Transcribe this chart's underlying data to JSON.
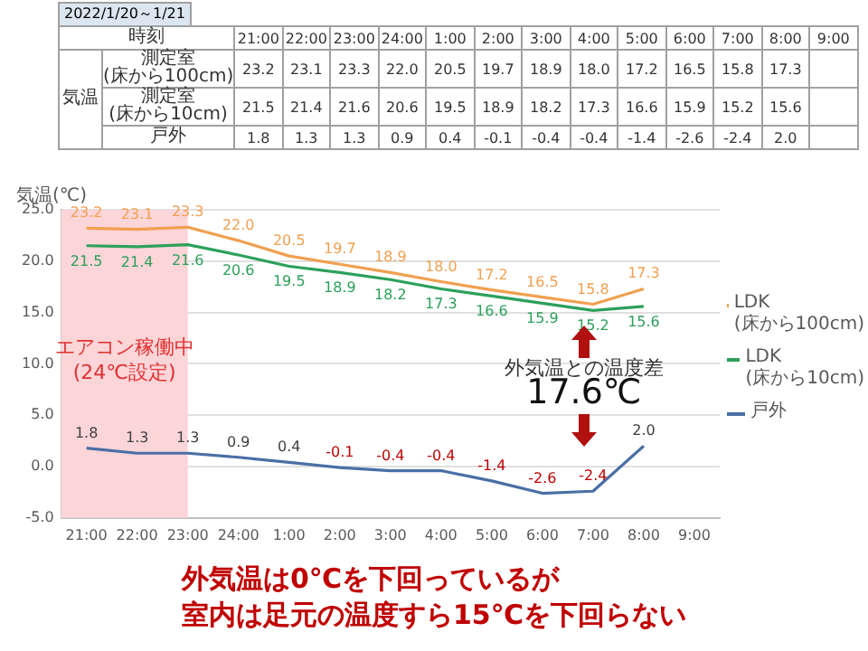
{
  "chart_data": {
    "type": "line",
    "ylabel": "気温(℃)",
    "categories": [
      "21:00",
      "22:00",
      "23:00",
      "24:00",
      "1:00",
      "2:00",
      "3:00",
      "4:00",
      "5:00",
      "6:00",
      "7:00",
      "8:00",
      "9:00"
    ],
    "series": [
      {
        "name": "LDK (床から100cm)",
        "color": "#f0a050",
        "values": [
          23.2,
          23.1,
          23.3,
          22.0,
          20.5,
          19.7,
          18.9,
          18.0,
          17.2,
          16.5,
          15.8,
          17.3,
          null
        ],
        "value_labels": [
          "23.2",
          "23.1",
          "23.3",
          "22.0",
          "20.5",
          "19.7",
          "18.9",
          "18.0",
          "17.2",
          "16.5",
          "15.8",
          "17.3",
          null
        ]
      },
      {
        "name": "LDK (床から10cm)",
        "color": "#2ca05a",
        "values": [
          21.5,
          21.4,
          21.6,
          20.6,
          19.5,
          18.9,
          18.2,
          17.3,
          16.6,
          15.9,
          15.2,
          15.6,
          null
        ],
        "value_labels": [
          "21.5",
          "21.4",
          "21.6",
          "20.6",
          "19.5",
          "18.9",
          "18.2",
          "17.3",
          "16.6",
          "15.9",
          "15.2",
          "15.6",
          null
        ]
      },
      {
        "name": "戸外",
        "color": "#4a6fa5",
        "values": [
          1.8,
          1.3,
          1.3,
          0.9,
          0.4,
          -0.1,
          -0.4,
          -0.4,
          -1.4,
          -2.6,
          -2.4,
          2.0,
          null
        ],
        "value_labels": [
          "1.8",
          "1.3",
          "1.3",
          "0.9",
          "0.4",
          "-0.1",
          "-0.4",
          "-0.4",
          "-1.4",
          "-2.6",
          "-2.4",
          "2.0",
          null
        ]
      }
    ],
    "ylim": [
      -5,
      25
    ],
    "yticks": [
      {
        "value": -5,
        "label": "-5.0"
      },
      {
        "value": 0,
        "label": "0.0"
      },
      {
        "value": 5,
        "label": "5.0"
      },
      {
        "value": 10,
        "label": "10.0"
      },
      {
        "value": 15,
        "label": "15.0"
      },
      {
        "value": 20,
        "label": "20.0"
      },
      {
        "value": 25,
        "label": "25.0"
      }
    ],
    "bands": [
      {
        "axis": "x",
        "from": "21:00",
        "to": "23:00",
        "label": "エアコン稼働中 (24℃設定)",
        "color": "#fbd5d8"
      }
    ],
    "annotations": [
      "2022/1/20～1/21",
      "時刻",
      "気温",
      "測定室 (床から100cm)",
      "測定室 (床から10cm)",
      "戸外",
      "外気温との温度差",
      "17.6℃",
      "外気温は0℃を下回っているが",
      "室内は足元の温度すら15℃を下回らない"
    ],
    "grid": "y",
    "legend": "right",
    "marker": "none",
    "line_style": "solid"
  }
}
